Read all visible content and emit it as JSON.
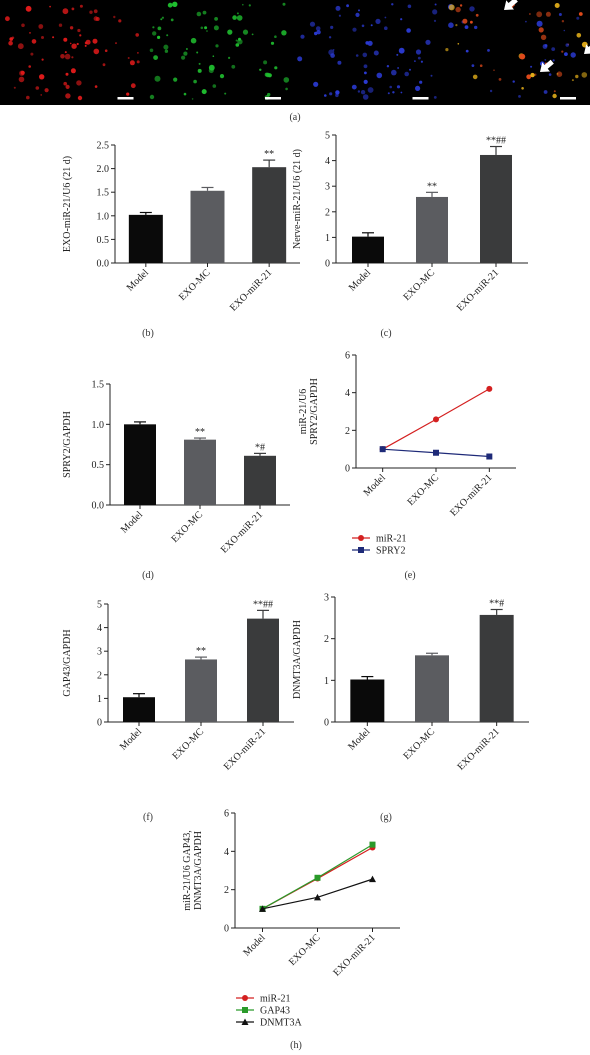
{
  "figure": {
    "panel_labels": {
      "a": "(a)",
      "b": "(b)",
      "c": "(c)",
      "d": "(d)",
      "e": "(e)",
      "f": "(f)",
      "g": "(g)",
      "h": "(h)"
    },
    "micrograph": {
      "channels": [
        {
          "name": "red",
          "color": "#e01a1a"
        },
        {
          "name": "green",
          "color": "#1fbf2f"
        },
        {
          "name": "blue",
          "color": "#2b3bd6"
        },
        {
          "name": "merge",
          "color": "#e8b21a"
        }
      ]
    }
  },
  "chart_data": [
    {
      "id": "b",
      "type": "bar",
      "title": "",
      "categories": [
        "Model",
        "EXO-MC",
        "EXO-miR-21"
      ],
      "values": [
        1.02,
        1.53,
        2.03
      ],
      "errors": [
        0.05,
        0.07,
        0.15
      ],
      "annotations": [
        "",
        "",
        "**"
      ],
      "bar_colors": [
        "#0a0a0a",
        "#5b5c60",
        "#3a3b3c"
      ],
      "ylabel": "EXO-miR-21/U6 (21 d)",
      "xlabel": "",
      "ylim": [
        0,
        2.5
      ],
      "yticks": [
        "0.0",
        "0.5",
        "1.0",
        "1.5",
        "2.0",
        "2.5"
      ]
    },
    {
      "id": "c",
      "type": "bar",
      "title": "",
      "categories": [
        "Model",
        "EXO-MC",
        "EXO-miR-21"
      ],
      "values": [
        1.03,
        2.58,
        4.22
      ],
      "errors": [
        0.15,
        0.18,
        0.33
      ],
      "annotations": [
        "",
        "**",
        "**##"
      ],
      "bar_colors": [
        "#0a0a0a",
        "#5b5c60",
        "#3a3b3c"
      ],
      "ylabel": "Nerve-miR-21/U6 (21 d)",
      "xlabel": "",
      "ylim": [
        0,
        5
      ],
      "yticks": [
        "0",
        "1",
        "2",
        "3",
        "4",
        "5"
      ]
    },
    {
      "id": "d",
      "type": "bar",
      "title": "",
      "categories": [
        "Model",
        "EXO-MC",
        "EXO-miR-21"
      ],
      "values": [
        1.0,
        0.81,
        0.61
      ],
      "errors": [
        0.03,
        0.02,
        0.03
      ],
      "annotations": [
        "",
        "**",
        "*#"
      ],
      "bar_colors": [
        "#0a0a0a",
        "#5b5c60",
        "#3a3b3c"
      ],
      "ylabel": "SPRY2/GAPDH",
      "xlabel": "",
      "ylim": [
        0,
        1.5
      ],
      "yticks": [
        "0.0",
        "0.5",
        "1.0",
        "1.5"
      ]
    },
    {
      "id": "e",
      "type": "line",
      "title": "",
      "categories": [
        "Model",
        "EXO-MC",
        "EXO-miR-21"
      ],
      "series": [
        {
          "name": "miR-21",
          "values": [
            1.0,
            2.58,
            4.2
          ],
          "color": "#d42020",
          "marker": "circle"
        },
        {
          "name": "SPRY2",
          "values": [
            1.0,
            0.81,
            0.61
          ],
          "color": "#1e2a78",
          "marker": "square"
        }
      ],
      "ylabel_lines": [
        "miR-21/U6",
        "SPRY2/GAPDH"
      ],
      "xlabel": "",
      "ylim": [
        0,
        6
      ],
      "yticks": [
        "0",
        "2",
        "4",
        "6"
      ],
      "legend": "bottom"
    },
    {
      "id": "f",
      "type": "bar",
      "title": "",
      "categories": [
        "Model",
        "EXO-MC",
        "EXO-miR-21"
      ],
      "values": [
        1.05,
        2.65,
        4.38
      ],
      "errors": [
        0.15,
        0.1,
        0.35
      ],
      "annotations": [
        "",
        "**",
        "**##"
      ],
      "bar_colors": [
        "#0a0a0a",
        "#5b5c60",
        "#3a3b3c"
      ],
      "ylabel": "GAP43/GAPDH",
      "xlabel": "",
      "ylim": [
        0,
        5
      ],
      "yticks": [
        "0",
        "1",
        "2",
        "3",
        "4",
        "5"
      ]
    },
    {
      "id": "g",
      "type": "bar",
      "title": "",
      "categories": [
        "Model",
        "EXO-MC",
        "EXO-miR-21"
      ],
      "values": [
        1.02,
        1.6,
        2.57
      ],
      "errors": [
        0.07,
        0.05,
        0.13
      ],
      "annotations": [
        "",
        "",
        "**#"
      ],
      "bar_colors": [
        "#0a0a0a",
        "#5b5c60",
        "#3a3b3c"
      ],
      "ylabel": "DNMT3A/GAPDH",
      "xlabel": "",
      "ylim": [
        0,
        3
      ],
      "yticks": [
        "0",
        "1",
        "2",
        "3"
      ]
    },
    {
      "id": "h",
      "type": "line",
      "title": "",
      "categories": [
        "Model",
        "EXO-MC",
        "EXO-miR-21"
      ],
      "series": [
        {
          "name": "miR-21",
          "values": [
            1.0,
            2.58,
            4.2
          ],
          "color": "#d42020",
          "marker": "circle"
        },
        {
          "name": "GAP43",
          "values": [
            1.0,
            2.62,
            4.35
          ],
          "color": "#2a9a2a",
          "marker": "square"
        },
        {
          "name": "DNMT3A",
          "values": [
            1.0,
            1.6,
            2.55
          ],
          "color": "#111111",
          "marker": "triangle"
        }
      ],
      "ylabel_lines": [
        "miR-21/U6 GAP43,",
        "DNMT3A/GAPDH"
      ],
      "xlabel": "",
      "ylim": [
        0,
        6
      ],
      "yticks": [
        "0",
        "2",
        "4",
        "6"
      ],
      "legend": "bottom"
    }
  ]
}
